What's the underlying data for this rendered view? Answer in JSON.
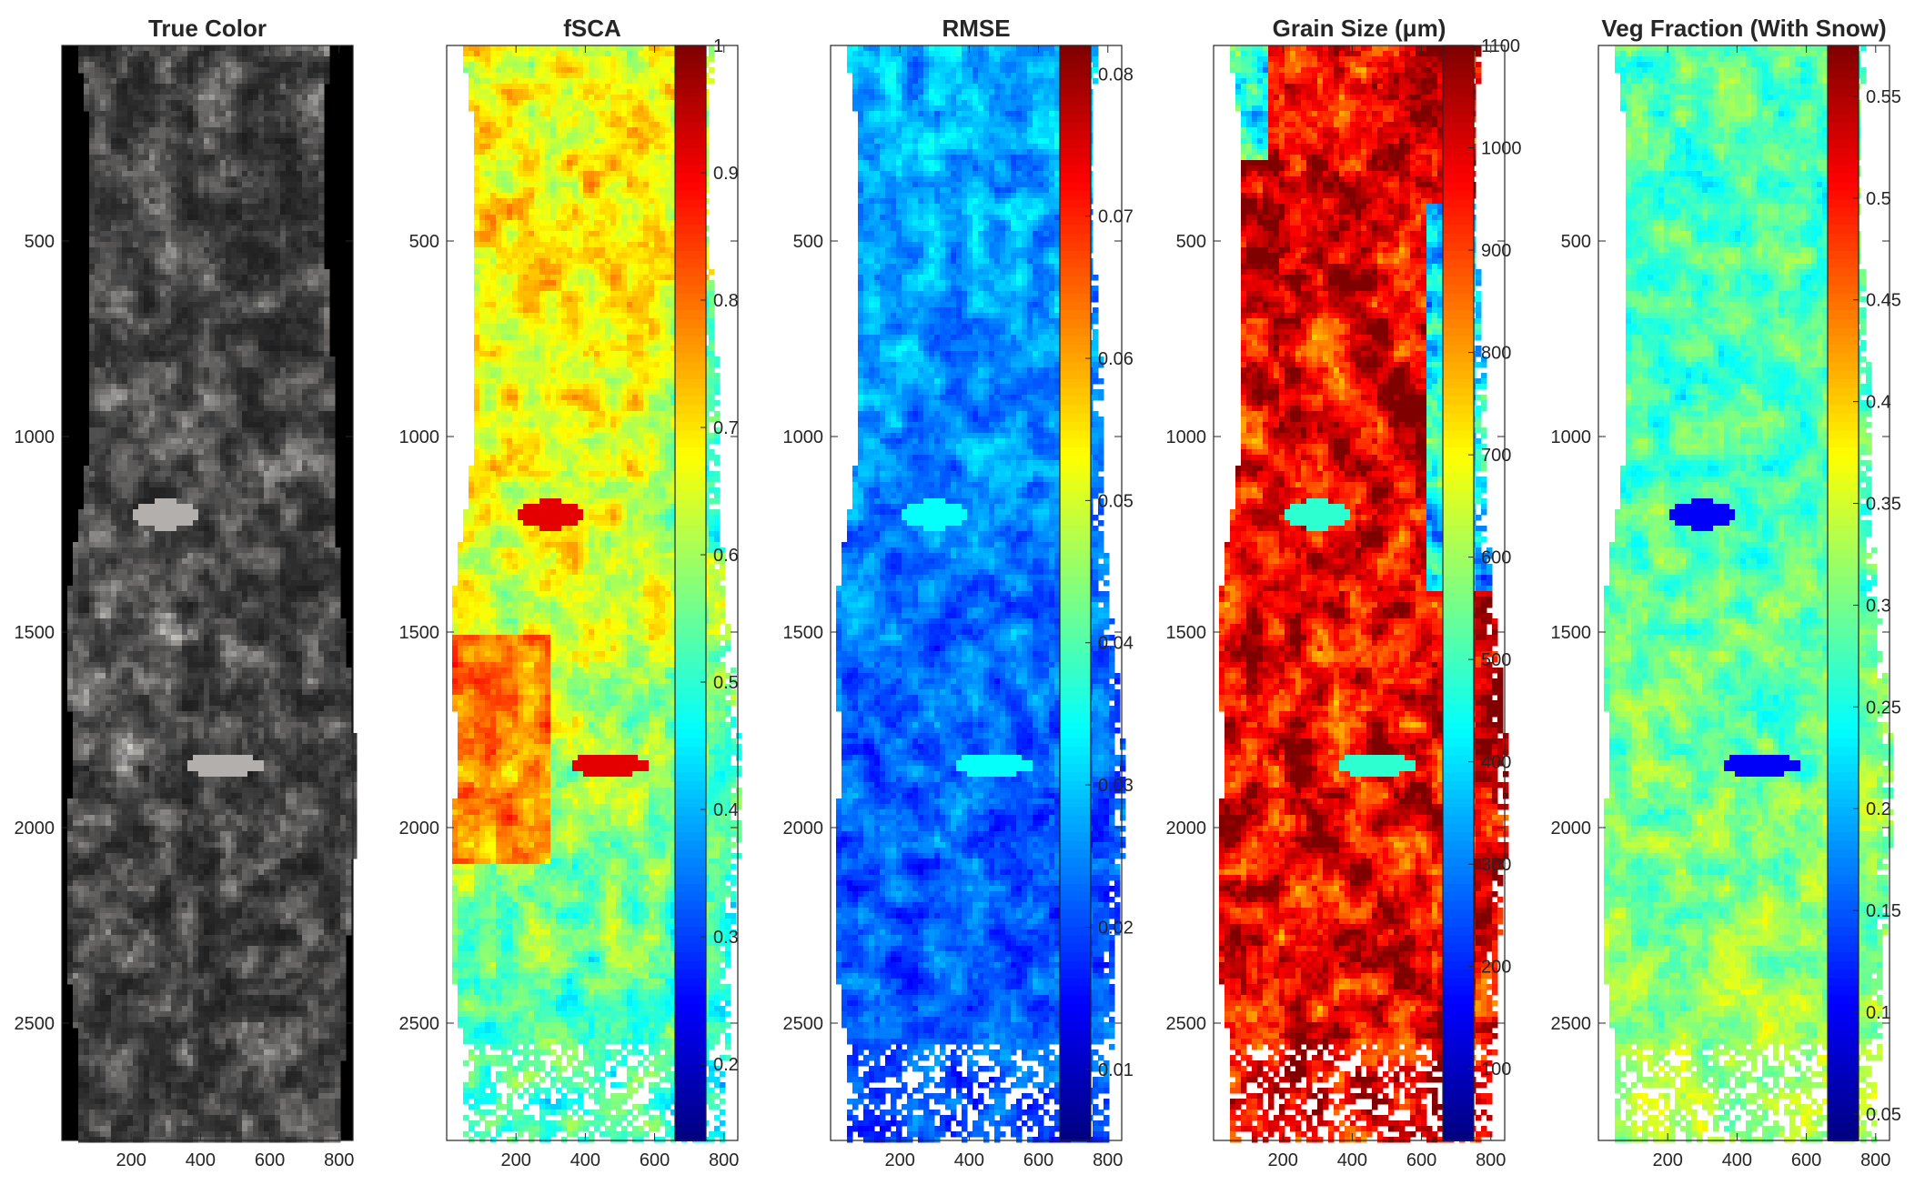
{
  "chart_data": [
    {
      "type": "heatmap",
      "title": "True Color",
      "x_ticks": [
        200,
        400,
        600,
        800
      ],
      "y_ticks": [
        500,
        1000,
        1500,
        2000,
        2500
      ],
      "xlim": [
        0,
        840
      ],
      "ylim": [
        0,
        2800
      ],
      "colorbar": null
    },
    {
      "type": "heatmap",
      "title": "fSCA",
      "x_ticks": [
        200,
        400,
        600,
        800
      ],
      "y_ticks": [
        500,
        1000,
        1500,
        2000,
        2500
      ],
      "xlim": [
        0,
        840
      ],
      "ylim": [
        0,
        2800
      ],
      "colorbar": {
        "colormap": "jet",
        "range": [
          0.14,
          1.0
        ],
        "ticks": [
          "1",
          "0.9",
          "0.8",
          "0.7",
          "0.6",
          "0.5",
          "0.4",
          "0.3",
          "0.2"
        ],
        "tick_values": [
          1,
          0.9,
          0.8,
          0.7,
          0.6,
          0.5,
          0.4,
          0.3,
          0.2
        ]
      }
    },
    {
      "type": "heatmap",
      "title": "RMSE",
      "x_ticks": [
        200,
        400,
        600,
        800
      ],
      "y_ticks": [
        500,
        1000,
        1500,
        2000,
        2500
      ],
      "xlim": [
        0,
        840
      ],
      "ylim": [
        0,
        2800
      ],
      "colorbar": {
        "colormap": "jet",
        "range": [
          0.005,
          0.082
        ],
        "ticks": [
          "0.08",
          "0.07",
          "0.06",
          "0.05",
          "0.04",
          "0.03",
          "0.02",
          "0.01"
        ],
        "tick_values": [
          0.08,
          0.07,
          0.06,
          0.05,
          0.04,
          0.03,
          0.02,
          0.01
        ]
      }
    },
    {
      "type": "heatmap",
      "title": "Grain Size (μm)",
      "x_ticks": [
        200,
        400,
        600,
        800
      ],
      "y_ticks": [
        500,
        1000,
        1500,
        2000,
        2500
      ],
      "xlim": [
        0,
        840
      ],
      "ylim": [
        0,
        2800
      ],
      "colorbar": {
        "colormap": "jet",
        "range": [
          30,
          1100
        ],
        "ticks": [
          "1100",
          "1000",
          "900",
          "800",
          "700",
          "600",
          "500",
          "400",
          "300",
          "200",
          "100"
        ],
        "tick_values": [
          1100,
          1000,
          900,
          800,
          700,
          600,
          500,
          400,
          300,
          200,
          100
        ]
      }
    },
    {
      "type": "heatmap",
      "title": "Veg Fraction (With Snow)",
      "x_ticks": [
        200,
        400,
        600,
        800
      ],
      "y_ticks": [
        500,
        1000,
        1500,
        2000,
        2500
      ],
      "xlim": [
        0,
        840
      ],
      "ylim": [
        0,
        2800
      ],
      "colorbar": {
        "colormap": "jet",
        "range": [
          0.037,
          0.575
        ],
        "ticks": [
          "0.55",
          "0.5",
          "0.45",
          "0.4",
          "0.35",
          "0.3",
          "0.25",
          "0.2",
          "0.15",
          "0.1",
          "0.05"
        ],
        "tick_values": [
          0.55,
          0.5,
          0.45,
          0.4,
          0.35,
          0.3,
          0.25,
          0.2,
          0.15,
          0.1,
          0.05
        ]
      }
    }
  ],
  "colors": {
    "axis": "#262626",
    "true_color_bg": "#000000"
  }
}
